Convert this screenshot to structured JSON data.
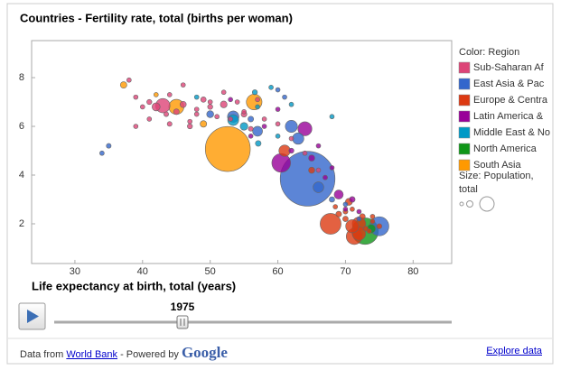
{
  "chart_data": {
    "type": "bubble",
    "title": "Countries - Fertility rate, total (births per woman)",
    "x_label": "Life expectancy at birth, total (years)",
    "color_label": "Color: Region",
    "size_label": "Size: Population, total",
    "xlim": [
      23.6,
      85.7
    ],
    "ylim": [
      0.37,
      9.52
    ],
    "xticks": [
      30,
      40,
      50,
      60,
      70,
      80
    ],
    "yticks": [
      2,
      4,
      6,
      8
    ],
    "series": [
      {
        "name": "Sub-Saharan Af",
        "color": "#dd4477",
        "x": [
          38,
          39,
          40,
          41,
          43,
          43.5,
          44,
          45,
          46,
          47,
          48,
          49,
          50,
          51,
          52,
          53,
          54,
          55,
          56,
          58,
          60,
          62,
          64,
          66,
          39,
          41,
          47,
          50,
          57,
          46,
          44,
          42,
          52,
          55,
          48
        ],
        "y": [
          7.9,
          7.2,
          6.8,
          7.0,
          6.85,
          6.5,
          7.3,
          6.6,
          6.9,
          6.2,
          6.5,
          7.1,
          6.8,
          6.4,
          6.9,
          6.3,
          7.0,
          6.6,
          5.9,
          6.3,
          6.1,
          5.5,
          4.9,
          4.2,
          6.0,
          6.3,
          6.0,
          7.0,
          7.1,
          7.7,
          6.1,
          6.8,
          7.4,
          6.5,
          6.7
        ],
        "size": [
          4,
          6,
          5,
          8,
          63,
          7,
          5,
          10,
          12,
          4,
          6,
          9,
          8,
          3,
          14,
          5,
          4,
          6,
          7,
          3,
          5,
          2,
          3,
          1,
          3,
          5,
          8,
          6,
          4,
          3,
          7,
          20,
          3,
          10,
          4
        ]
      },
      {
        "name": "East Asia & Pac",
        "color": "#3366cc",
        "x": [
          64.4,
          75,
          35,
          34,
          53.4,
          57,
          60,
          61,
          63,
          66,
          68,
          70,
          72,
          56,
          50,
          62
        ],
        "y": [
          3.85,
          1.9,
          5.2,
          4.9,
          6.4,
          5.8,
          7.5,
          7.2,
          5.5,
          3.5,
          3.0,
          2.8,
          2.2,
          6.3,
          6.5,
          6.0
        ],
        "size": [
          920,
          112,
          7,
          3,
          40,
          30,
          3,
          1,
          40,
          35,
          9,
          5,
          2,
          10,
          15,
          45
        ]
      },
      {
        "name": "Europe & Centra",
        "color": "#dc3912",
        "x": [
          67.8,
          71.3,
          69,
          70,
          71,
          72,
          73,
          74,
          72.5,
          70.5,
          68.5,
          73.5,
          75,
          71,
          61,
          65,
          70,
          72,
          74
        ],
        "y": [
          2.0,
          1.48,
          2.4,
          2.2,
          2.6,
          2.0,
          1.8,
          2.1,
          2.3,
          2.9,
          2.7,
          1.7,
          1.9,
          1.9,
          5.0,
          4.2,
          2.5,
          1.6,
          2.3
        ],
        "size": [
          134,
          79,
          10,
          9,
          5,
          56,
          8,
          4,
          10,
          15,
          3,
          2,
          8,
          53,
          40,
          12,
          7,
          55,
          4
        ]
      },
      {
        "name": "Latin America &",
        "color": "#990099",
        "x": [
          60.5,
          64,
          56,
          58,
          62,
          65,
          66,
          68,
          69,
          70,
          71,
          72,
          60,
          53,
          67
        ],
        "y": [
          4.5,
          5.9,
          5.6,
          6.0,
          5.0,
          4.7,
          5.2,
          4.3,
          3.2,
          2.6,
          3.0,
          2.5,
          6.7,
          7.1,
          3.9
        ],
        "size": [
          108,
          60,
          5,
          4,
          8,
          12,
          3,
          6,
          25,
          3,
          10,
          2,
          3,
          2,
          7
        ]
      },
      {
        "name": "Middle East & No",
        "color": "#0099c6",
        "x": [
          53.4,
          56.6,
          59,
          68,
          57.1,
          60,
          57,
          48,
          62,
          55
        ],
        "y": [
          6.26,
          7.4,
          7.6,
          6.4,
          5.3,
          5.6,
          6.8,
          7.2,
          6.9,
          6.0
        ],
        "size": [
          37,
          8,
          6,
          4,
          10,
          3,
          2,
          3,
          5,
          18
        ]
      },
      {
        "name": "North America",
        "color": "#109618",
        "x": [
          72.9,
          73.8
        ],
        "y": [
          1.7,
          1.8
        ],
        "size": [
          216,
          23
        ]
      },
      {
        "name": "South Asia",
        "color": "#ff9900",
        "x": [
          52.6,
          56.5,
          37.2,
          45,
          42,
          49
        ],
        "y": [
          5.07,
          7.0,
          7.7,
          6.8,
          7.3,
          6.1
        ],
        "size": [
          620,
          75,
          13,
          70,
          3,
          13
        ]
      }
    ]
  },
  "controls": {
    "year": 1975
  },
  "footer": {
    "source_prefix": "Data from",
    "source_link": "World Bank",
    "powered": "- Powered by",
    "logo": "Google",
    "explore": "Explore data"
  }
}
